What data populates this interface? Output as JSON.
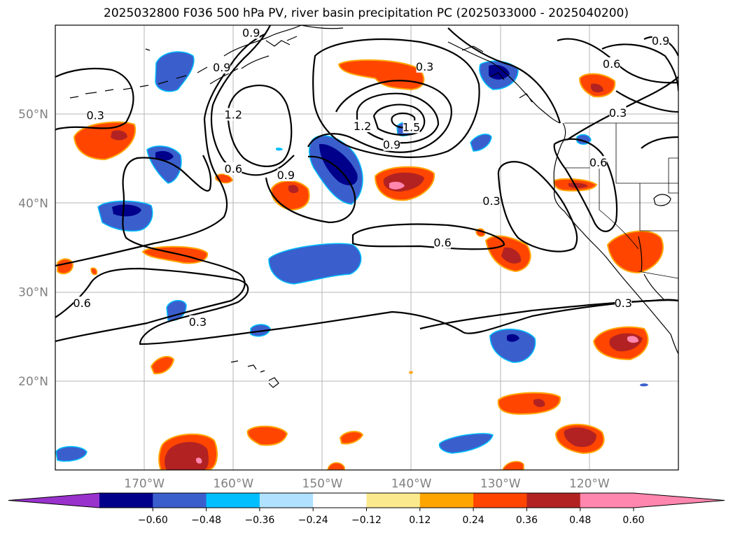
{
  "title": "2025032800 F036 500 hPa PV, river basin precipitation PC (2025033000 - 2025040200)",
  "map": {
    "lon_range": [
      -180,
      -110
    ],
    "lat_range": [
      10,
      60
    ],
    "lon_ticks": [
      {
        "lon": -170,
        "label": "170°W"
      },
      {
        "lon": -160,
        "label": "160°W"
      },
      {
        "lon": -150,
        "label": "150°W"
      },
      {
        "lon": -140,
        "label": "140°W"
      },
      {
        "lon": -130,
        "label": "130°W"
      },
      {
        "lon": -120,
        "label": "120°W"
      }
    ],
    "lat_ticks": [
      {
        "lat": 50,
        "label": "50°N"
      },
      {
        "lat": 40,
        "label": "40°N"
      },
      {
        "lat": 30,
        "label": "30°N"
      },
      {
        "lat": 20,
        "label": "20°N"
      }
    ],
    "grid": true
  },
  "contour_labels": [
    {
      "text": "0.9",
      "lon": -158.0,
      "lat": 59.1
    },
    {
      "text": "0.9",
      "lon": -161.3,
      "lat": 55.2
    },
    {
      "text": "0.3",
      "lon": -138.5,
      "lat": 55.3
    },
    {
      "text": "0.9",
      "lon": -112.0,
      "lat": 58.2
    },
    {
      "text": "0.6",
      "lon": -117.5,
      "lat": 55.6
    },
    {
      "text": "0.3",
      "lon": -175.5,
      "lat": 49.8
    },
    {
      "text": "1.2",
      "lon": -160.0,
      "lat": 49.9
    },
    {
      "text": "1.2",
      "lon": -145.5,
      "lat": 48.6
    },
    {
      "text": "1.5",
      "lon": -140.0,
      "lat": 48.5
    },
    {
      "text": "0.9",
      "lon": -142.2,
      "lat": 46.5
    },
    {
      "text": "0.3",
      "lon": -116.8,
      "lat": 50.1
    },
    {
      "text": "0.6",
      "lon": -119.0,
      "lat": 44.5
    },
    {
      "text": "0.6",
      "lon": -160.0,
      "lat": 43.8
    },
    {
      "text": "0.9",
      "lon": -154.1,
      "lat": 43.1
    },
    {
      "text": "0.3",
      "lon": -131.0,
      "lat": 40.2
    },
    {
      "text": "0.6",
      "lon": -136.5,
      "lat": 35.5
    },
    {
      "text": "0.6",
      "lon": -177.0,
      "lat": 28.7
    },
    {
      "text": "0.3",
      "lon": -164.0,
      "lat": 26.6
    },
    {
      "text": "0.3",
      "lon": -116.2,
      "lat": 28.7
    }
  ],
  "colorbar": {
    "colors": [
      "#9932cc",
      "#00008b",
      "#3a5fcd",
      "#00bfff",
      "#b0e2ff",
      "#ffffff",
      "#fbe98e",
      "#ffa500",
      "#ff4500",
      "#b22222",
      "#ff86ae",
      "#ff86ae"
    ],
    "ticks": [
      "−0.60",
      "−0.48",
      "−0.36",
      "−0.24",
      "−0.12",
      "0.12",
      "0.24",
      "0.36",
      "0.48",
      "0.60"
    ]
  }
}
